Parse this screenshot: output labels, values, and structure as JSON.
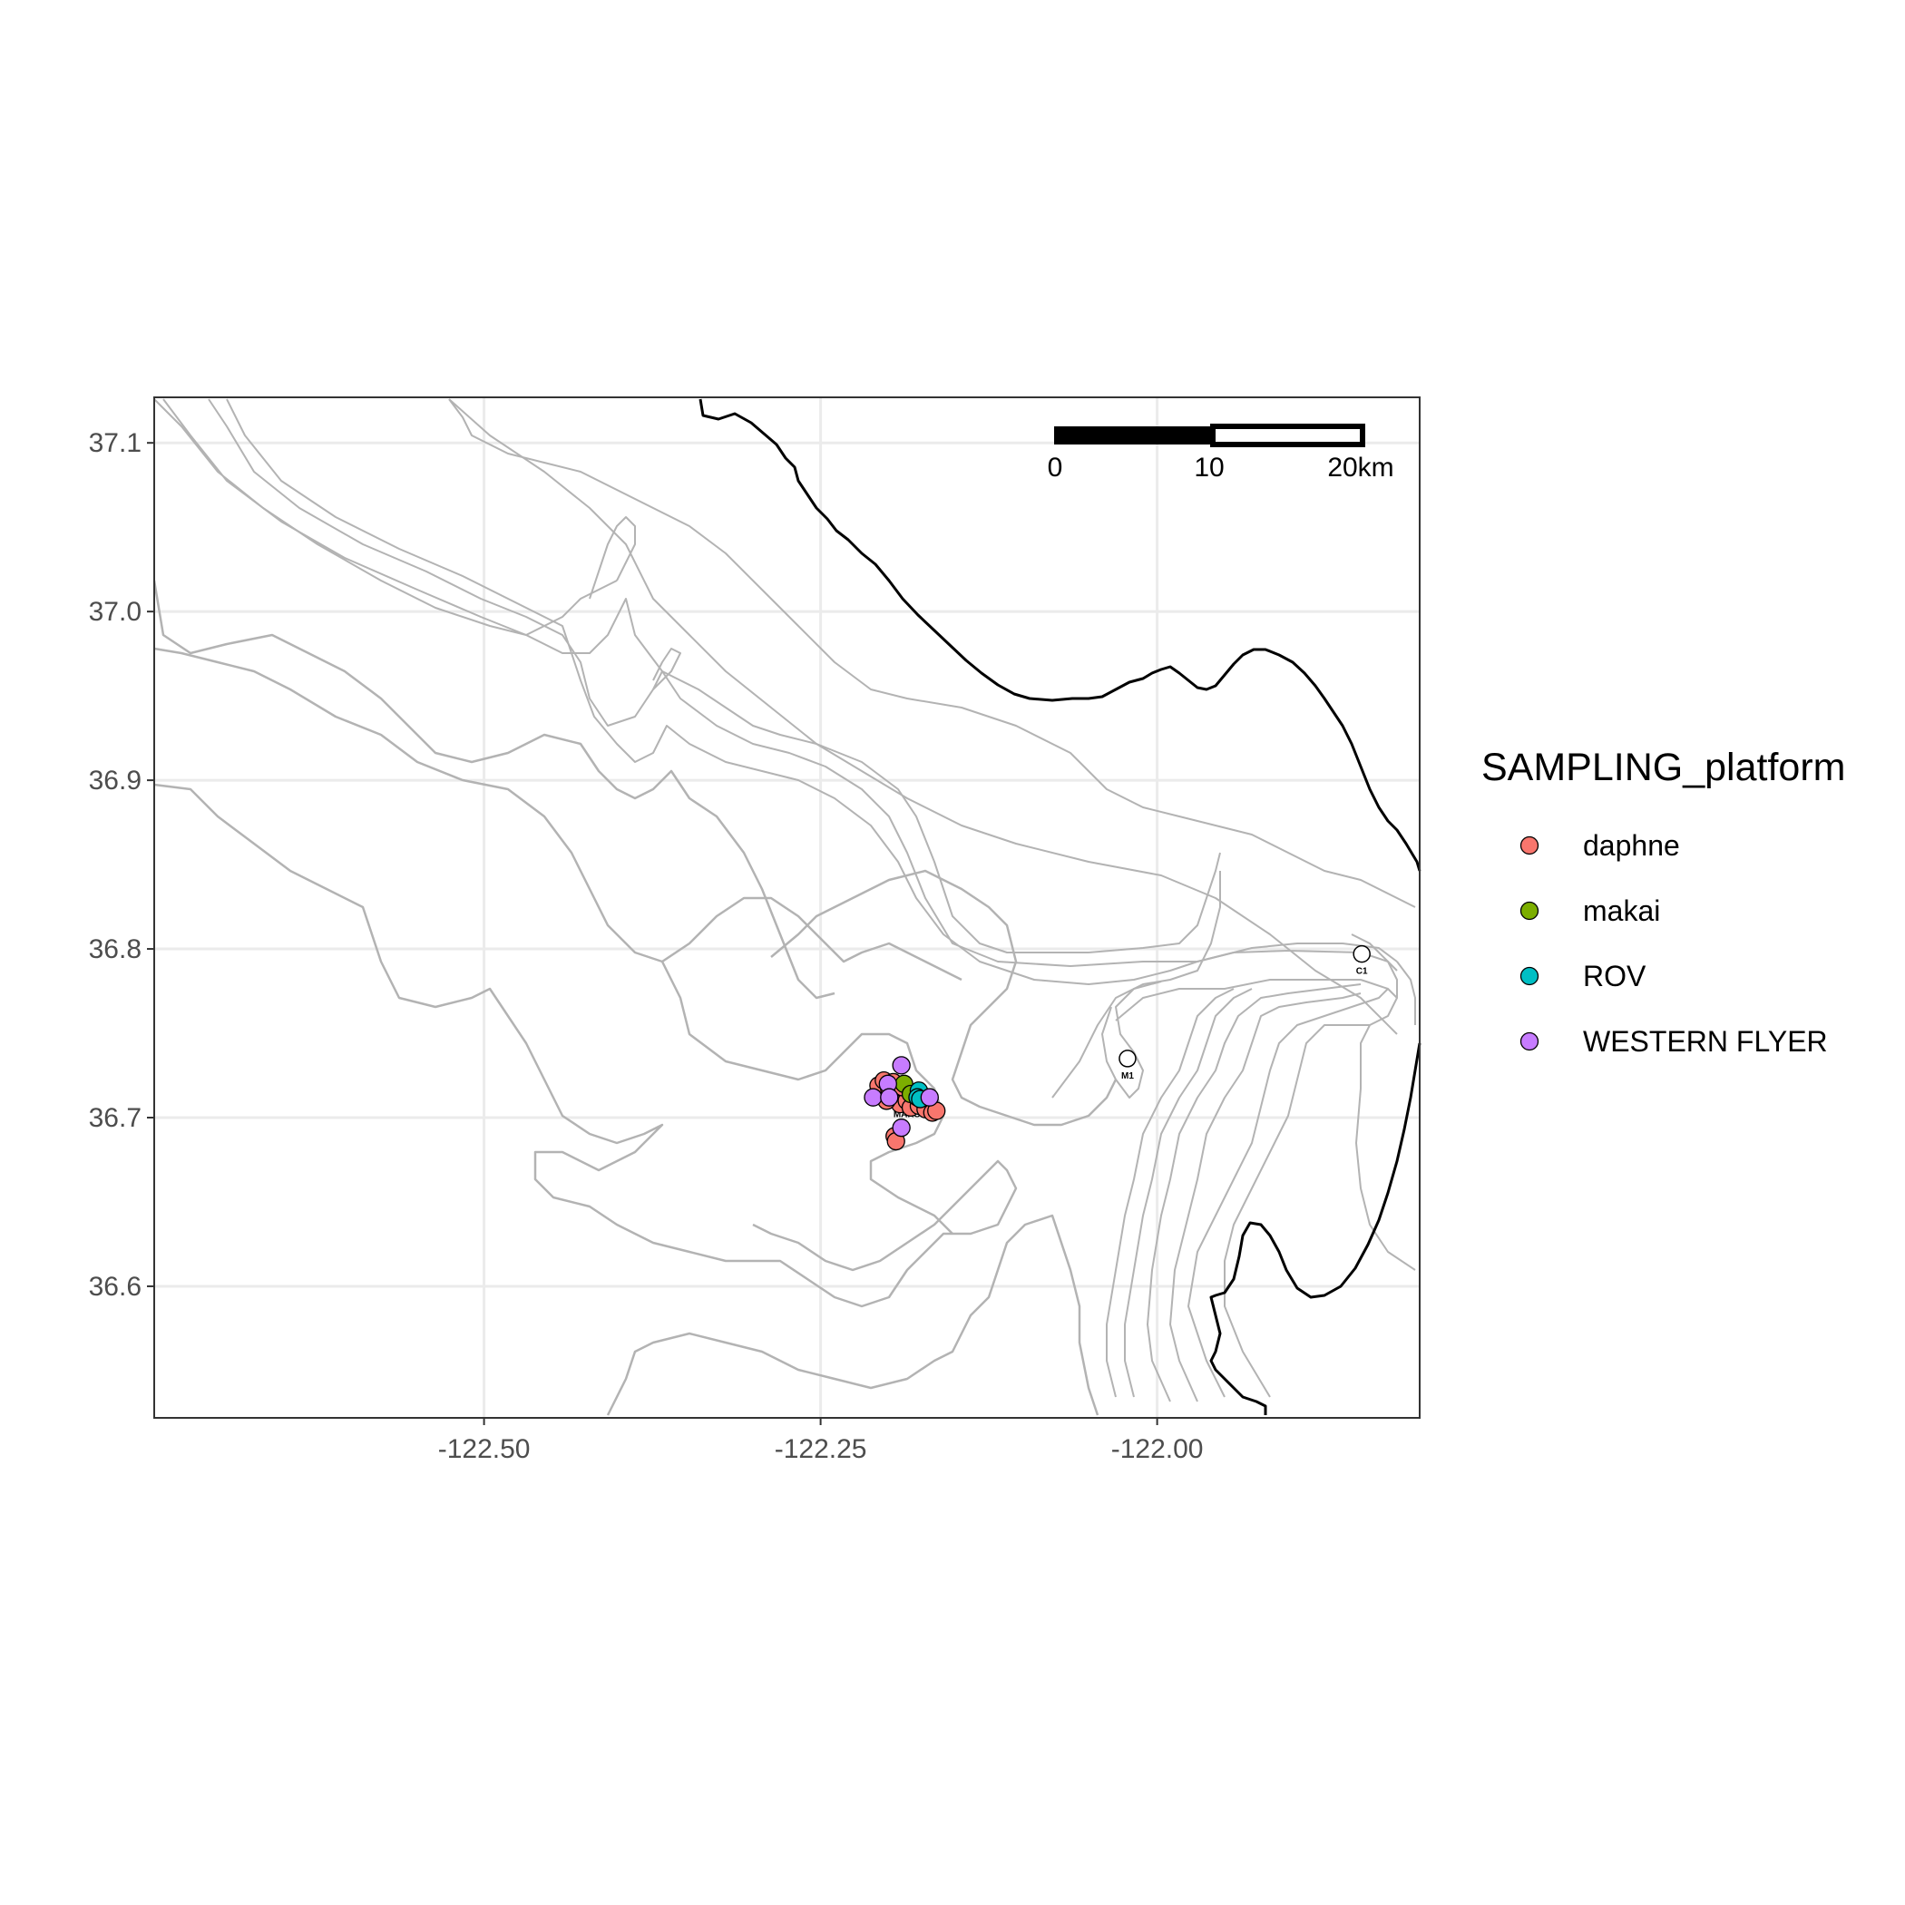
{
  "chart_data": {
    "type": "scatter",
    "xlabel": "",
    "ylabel": "",
    "xlim": [
      -122.745,
      -121.805
    ],
    "ylim": [
      36.522,
      37.127
    ],
    "x_ticks": [
      -122.5,
      -122.25,
      -122.0
    ],
    "x_tick_labels": [
      "-122.50",
      "-122.25",
      "-122.00"
    ],
    "y_ticks": [
      36.6,
      36.7,
      36.8,
      36.9,
      37.0,
      37.1
    ],
    "y_tick_labels": [
      "36.6",
      "36.7",
      "36.8",
      "36.9",
      "37.0",
      "37.1"
    ],
    "grid": true,
    "legend": {
      "title": "SAMPLING_platform",
      "position": "right",
      "entries": [
        {
          "label": "daphne",
          "color": "#F8766D"
        },
        {
          "label": "makai",
          "color": "#7CAE00"
        },
        {
          "label": "ROV",
          "color": "#00BFC4"
        },
        {
          "label": "WESTERN FLYER",
          "color": "#C77CFF"
        }
      ]
    },
    "scale_bar": {
      "labels": [
        "0",
        "10",
        "20km"
      ]
    },
    "series": [
      {
        "name": "daphne",
        "color": "#F8766D",
        "points": [
          [
            -122.207,
            36.719
          ],
          [
            -122.203,
            36.722
          ],
          [
            -122.199,
            36.717
          ],
          [
            -122.195,
            36.712
          ],
          [
            -122.191,
            36.708
          ],
          [
            -122.186,
            36.71
          ],
          [
            -122.183,
            36.706
          ],
          [
            -122.177,
            36.707
          ],
          [
            -122.172,
            36.705
          ],
          [
            -122.167,
            36.703
          ],
          [
            -122.164,
            36.704
          ],
          [
            -122.195,
            36.689
          ],
          [
            -122.194,
            36.686
          ],
          [
            -122.196,
            36.721
          ],
          [
            -122.189,
            36.718
          ],
          [
            -122.201,
            36.71
          ]
        ]
      },
      {
        "name": "makai",
        "color": "#7CAE00",
        "points": [
          [
            -122.188,
            36.72
          ],
          [
            -122.183,
            36.714
          ]
        ]
      },
      {
        "name": "ROV",
        "color": "#00BFC4",
        "points": [
          [
            -122.177,
            36.716
          ],
          [
            -122.178,
            36.712
          ],
          [
            -122.176,
            36.711
          ]
        ]
      },
      {
        "name": "WESTERN FLYER",
        "color": "#C77CFF",
        "points": [
          [
            -122.19,
            36.731
          ],
          [
            -122.2,
            36.72
          ],
          [
            -122.211,
            36.712
          ],
          [
            -122.199,
            36.712
          ],
          [
            -122.169,
            36.712
          ],
          [
            -122.19,
            36.694
          ]
        ]
      }
    ],
    "stations": [
      {
        "label": "M1",
        "x": -122.022,
        "y": 36.735
      },
      {
        "label": "C1",
        "x": -121.848,
        "y": 36.797
      },
      {
        "label": "MARS",
        "x": -122.186,
        "y": 36.712
      }
    ]
  }
}
